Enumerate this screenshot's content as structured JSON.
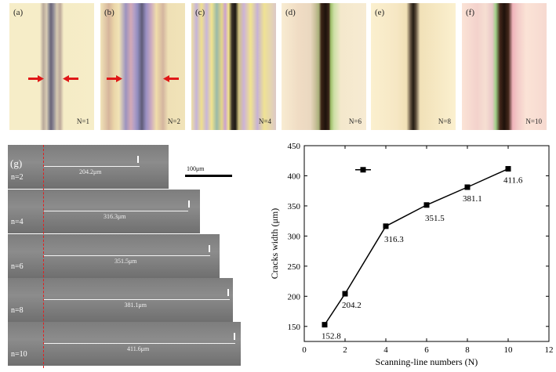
{
  "panels": [
    {
      "label": "(a)",
      "n": "N=1"
    },
    {
      "label": "(b)",
      "n": "N=2"
    },
    {
      "label": "(c)",
      "n": "N=4"
    },
    {
      "label": "(d)",
      "n": "N=6"
    },
    {
      "label": "(e)",
      "n": "N=8"
    },
    {
      "label": "(f)",
      "n": "N=10"
    }
  ],
  "sem": {
    "label": "(g)",
    "scale_bar": "100μm",
    "strips": [
      {
        "n": "n=2",
        "measure": "204.2μm"
      },
      {
        "n": "n=4",
        "measure": "316.3μm"
      },
      {
        "n": "n=6",
        "measure": "351.5μm"
      },
      {
        "n": "n=8",
        "measure": "381.1μm"
      },
      {
        "n": "n=10",
        "measure": "411.6μm"
      }
    ]
  },
  "chart_data": {
    "type": "line",
    "xlabel": "Scanning-line numbers (N)",
    "ylabel": "Cracks width (μm)",
    "xlim": [
      0,
      12
    ],
    "ylim": [
      125,
      450
    ],
    "xticks": [
      0,
      2,
      4,
      6,
      8,
      10,
      12
    ],
    "yticks": [
      150,
      200,
      250,
      300,
      350,
      400,
      450
    ],
    "x": [
      1,
      2,
      4,
      6,
      8,
      10
    ],
    "values": [
      152.8,
      204.2,
      316.3,
      351.5,
      381.1,
      411.6
    ],
    "data_labels": [
      "152.8",
      "204.2",
      "316.3",
      "351.5",
      "381.1",
      "411.6"
    ],
    "legend": "top-left",
    "grid": false
  }
}
